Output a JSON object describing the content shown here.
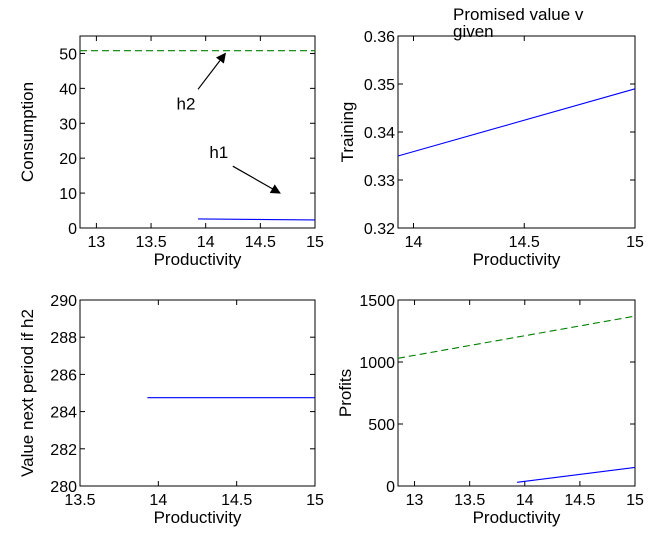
{
  "chart_data": [
    {
      "id": "consumption",
      "type": "line",
      "title": "",
      "xlabel": "Productivity",
      "ylabel": "Consumption",
      "xlim": [
        12.85,
        15
      ],
      "ylim": [
        0,
        55
      ],
      "xticks": [
        13,
        13.5,
        14,
        14.5,
        15
      ],
      "xtick_labels": [
        "13",
        "13.5",
        "14",
        "14.5",
        "15"
      ],
      "yticks": [
        0,
        10,
        20,
        30,
        40,
        50
      ],
      "ytick_labels": [
        "0",
        "10",
        "20",
        "30",
        "40",
        "50"
      ],
      "series": [
        {
          "name": "h2",
          "color": "#008000",
          "dash": true,
          "x": [
            12.85,
            15
          ],
          "y": [
            50.8,
            50.8
          ]
        },
        {
          "name": "h1",
          "color": "#0000ff",
          "dash": false,
          "x": [
            13.93,
            15
          ],
          "y": [
            2.6,
            2.3
          ]
        }
      ],
      "annotations": [
        {
          "text": "h2",
          "x": 13.82,
          "y": 34,
          "arrow_to": [
            14.18,
            50
          ]
        },
        {
          "text": "h1",
          "x": 14.12,
          "y": 20,
          "arrow_to": [
            14.68,
            10
          ]
        }
      ]
    },
    {
      "id": "training",
      "type": "line",
      "title": "Promised value v given",
      "xlabel": "Productivity",
      "ylabel": "Training",
      "xlim": [
        13.93,
        15
      ],
      "ylim": [
        0.32,
        0.36
      ],
      "xticks": [
        14,
        14.5,
        15
      ],
      "xtick_labels": [
        "14",
        "14.5",
        "15"
      ],
      "yticks": [
        0.32,
        0.33,
        0.34,
        0.35,
        0.36
      ],
      "ytick_labels": [
        "0.32",
        "0.33",
        "0.34",
        "0.35",
        "0.36"
      ],
      "series": [
        {
          "color": "#0000ff",
          "dash": false,
          "x": [
            13.93,
            15
          ],
          "y": [
            0.335,
            0.349
          ]
        }
      ]
    },
    {
      "id": "value_next",
      "type": "line",
      "title": "",
      "xlabel": "Productivity",
      "ylabel": "Value next period if h2",
      "xlim": [
        13.5,
        15
      ],
      "ylim": [
        280,
        290
      ],
      "xticks": [
        13.5,
        14,
        14.5,
        15
      ],
      "xtick_labels": [
        "13.5",
        "14",
        "14.5",
        "15"
      ],
      "yticks": [
        280,
        282,
        284,
        286,
        288,
        290
      ],
      "ytick_labels": [
        "280",
        "282",
        "284",
        "286",
        "288",
        "290"
      ],
      "series": [
        {
          "color": "#0000ff",
          "dash": false,
          "x": [
            13.93,
            15
          ],
          "y": [
            284.75,
            284.75
          ]
        }
      ]
    },
    {
      "id": "profits",
      "type": "line",
      "title": "",
      "xlabel": "Productivity",
      "ylabel": "Profits",
      "xlim": [
        12.85,
        15
      ],
      "ylim": [
        0,
        1500
      ],
      "xticks": [
        13,
        13.5,
        14,
        14.5,
        15
      ],
      "xtick_labels": [
        "13",
        "13.5",
        "14",
        "14.5",
        "15"
      ],
      "yticks": [
        0,
        500,
        1000,
        1500
      ],
      "ytick_labels": [
        "0",
        "500",
        "1000",
        "1500"
      ],
      "series": [
        {
          "name": "h2",
          "color": "#008000",
          "dash": true,
          "x": [
            12.85,
            15
          ],
          "y": [
            1030,
            1370
          ]
        },
        {
          "name": "h1",
          "color": "#0000ff",
          "dash": false,
          "x": [
            13.93,
            15
          ],
          "y": [
            30,
            150
          ]
        }
      ]
    }
  ]
}
